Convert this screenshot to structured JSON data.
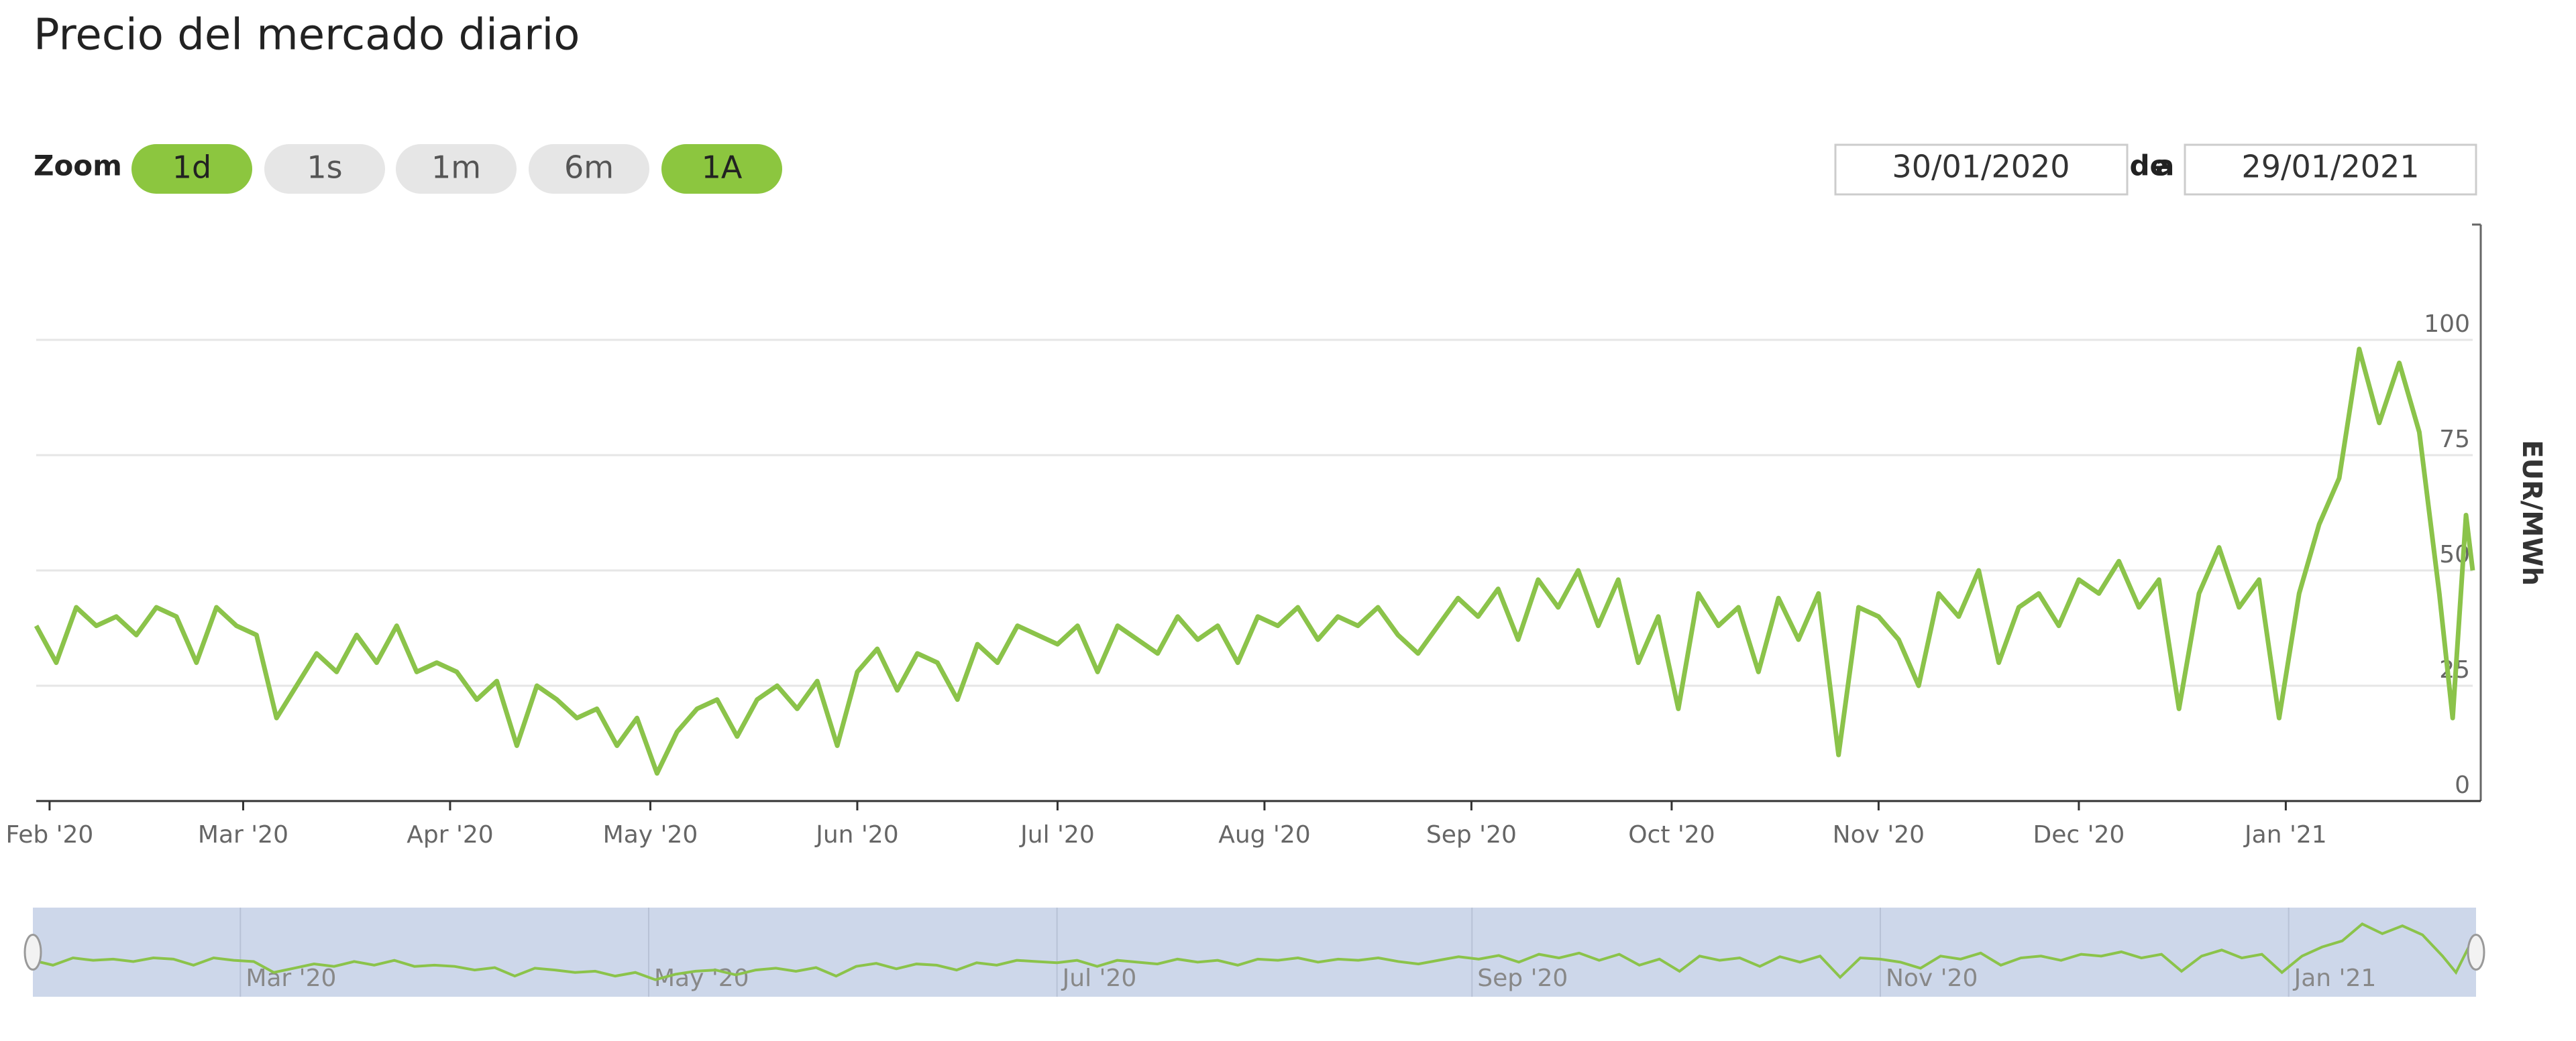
{
  "controls": {
    "zoom_label": "Zoom",
    "buttons": [
      "1d",
      "1s",
      "1m",
      "6m",
      "1A"
    ],
    "active": [
      "1d",
      "1A"
    ],
    "from_label": "Desde",
    "from": "30/01/2020",
    "to_label": "a",
    "to": "29/01/2021"
  },
  "chart_data": {
    "type": "line",
    "title": "Precio del mercado diario",
    "y_label": "EUR/MWh",
    "x": [
      0,
      3,
      6,
      9,
      12,
      15,
      18,
      21,
      24,
      27,
      30,
      33,
      36,
      39,
      42,
      45,
      48,
      51,
      54,
      57,
      60,
      63,
      66,
      69,
      72,
      75,
      78,
      81,
      84,
      87,
      90,
      93,
      96,
      99,
      102,
      105,
      108,
      111,
      114,
      117,
      120,
      123,
      126,
      129,
      132,
      135,
      138,
      141,
      144,
      147,
      150,
      153,
      156,
      159,
      162,
      165,
      168,
      171,
      174,
      177,
      180,
      183,
      186,
      189,
      192,
      195,
      198,
      201,
      204,
      207,
      210,
      213,
      216,
      219,
      222,
      225,
      228,
      231,
      234,
      237,
      240,
      243,
      246,
      249,
      252,
      255,
      258,
      261,
      264,
      267,
      270,
      273,
      276,
      279,
      282,
      285,
      288,
      291,
      294,
      297,
      300,
      303,
      306,
      309,
      312,
      315,
      318,
      321,
      324,
      327,
      330,
      333,
      336,
      339,
      342,
      345,
      348,
      351,
      354,
      357,
      360,
      362,
      364,
      365
    ],
    "values": [
      38,
      30,
      42,
      38,
      40,
      36,
      42,
      40,
      30,
      42,
      38,
      36,
      18,
      25,
      32,
      28,
      36,
      30,
      38,
      28,
      30,
      28,
      22,
      26,
      12,
      25,
      22,
      18,
      20,
      12,
      18,
      6,
      15,
      20,
      22,
      14,
      22,
      25,
      20,
      26,
      12,
      28,
      33,
      24,
      32,
      30,
      22,
      34,
      30,
      38,
      36,
      34,
      38,
      28,
      38,
      35,
      32,
      40,
      35,
      38,
      30,
      40,
      38,
      42,
      35,
      40,
      38,
      42,
      36,
      32,
      38,
      44,
      40,
      46,
      35,
      48,
      42,
      50,
      38,
      48,
      30,
      40,
      20,
      45,
      38,
      42,
      28,
      44,
      35,
      45,
      10,
      42,
      40,
      35,
      25,
      45,
      40,
      50,
      30,
      42,
      45,
      38,
      48,
      45,
      52,
      42,
      48,
      20,
      45,
      55,
      42,
      48,
      18,
      45,
      60,
      70,
      98,
      82,
      95,
      80,
      45,
      18,
      62,
      50
    ],
    "color": "#8bc34a",
    "xlim": [
      0,
      365
    ],
    "ylim": [
      0,
      125
    ],
    "xticks": [
      {
        "value": 2,
        "label": "Feb '20"
      },
      {
        "value": 31,
        "label": "Mar '20"
      },
      {
        "value": 62,
        "label": "Apr '20"
      },
      {
        "value": 92,
        "label": "May '20"
      },
      {
        "value": 123,
        "label": "Jun '20"
      },
      {
        "value": 153,
        "label": "Jul '20"
      },
      {
        "value": 184,
        "label": "Aug '20"
      },
      {
        "value": 215,
        "label": "Sep '20"
      },
      {
        "value": 245,
        "label": "Oct '20"
      },
      {
        "value": 276,
        "label": "Nov '20"
      },
      {
        "value": 306,
        "label": "Dec '20"
      },
      {
        "value": 337,
        "label": "Jan '21"
      }
    ],
    "yticks": [
      0,
      25,
      50,
      75,
      100
    ],
    "grid": true,
    "navigator_xticks": [
      {
        "value": 31,
        "label": "Mar '20"
      },
      {
        "value": 92,
        "label": "May '20"
      },
      {
        "value": 153,
        "label": "Jul '20"
      },
      {
        "value": 215,
        "label": "Sep '20"
      },
      {
        "value": 276,
        "label": "Nov '20"
      },
      {
        "value": 337,
        "label": "Jan '21"
      }
    ],
    "navigator_color": "#cdd7ea"
  }
}
